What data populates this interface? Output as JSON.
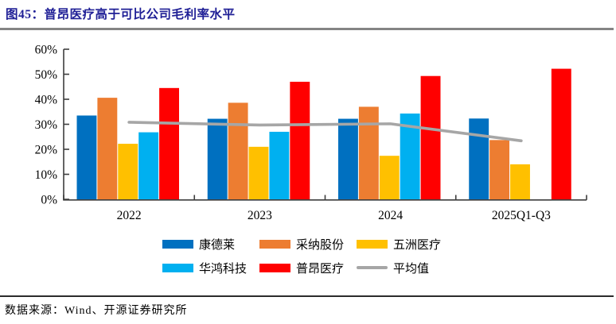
{
  "title": "图45：普昂医疗高于可比公司毛利率水平",
  "footer": {
    "source": "数据来源：Wind、开源证券研究所"
  },
  "colors": {
    "title_text": "#1F1F96",
    "axis": "#3d3d3d",
    "top_divider": "#848484",
    "bottom_divider": "#2b2b2b"
  },
  "chart_data": {
    "type": "bar",
    "title": "普昂医疗高于可比公司毛利率水平",
    "figure_label": "图45",
    "categories": [
      "2022",
      "2023",
      "2024",
      "2025Q1-Q3"
    ],
    "series": [
      {
        "name": "康德莱",
        "color": "#0070C0",
        "values": [
          33.5,
          32.2,
          32.2,
          32.3
        ]
      },
      {
        "name": "采纳股份",
        "color": "#ED7D31",
        "values": [
          40.6,
          38.6,
          37.0,
          23.7
        ]
      },
      {
        "name": "五洲医疗",
        "color": "#FFC000",
        "values": [
          22.2,
          21.0,
          17.4,
          14.0
        ]
      },
      {
        "name": "华鸿科技",
        "color": "#00B0F0",
        "values": [
          26.8,
          27.0,
          34.3,
          null
        ]
      },
      {
        "name": "普昂医疗",
        "color": "#FF0000",
        "values": [
          44.5,
          47.0,
          49.3,
          52.2
        ]
      }
    ],
    "line_series": {
      "name": "平均值",
      "color": "#A6A6A6",
      "values": [
        30.8,
        29.7,
        30.2,
        23.4
      ]
    },
    "ylabel": "",
    "xlabel": "",
    "ylim": [
      0,
      60
    ],
    "ytick_step": 10,
    "ytick_labels": [
      "0%",
      "10%",
      "20%",
      "30%",
      "40%",
      "50%",
      "60%"
    ],
    "grid": false,
    "legend_position": "bottom"
  }
}
